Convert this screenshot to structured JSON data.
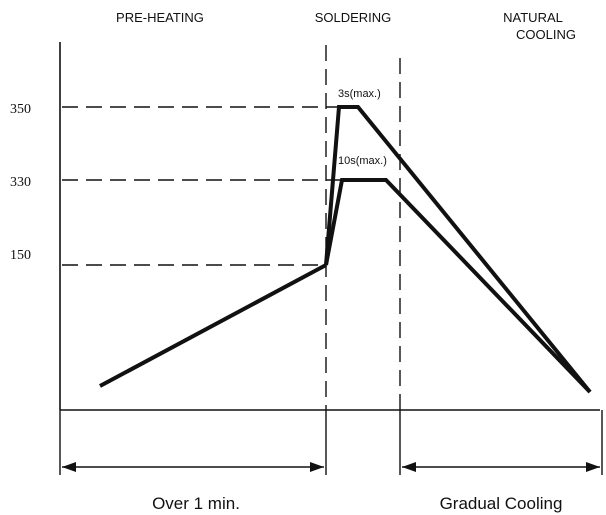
{
  "phases": {
    "preheating": "PRE-HEATING",
    "soldering": "SOLDERING",
    "cooling_line1": "NATURAL",
    "cooling_line2": "COOLING"
  },
  "temperature_ticks": [
    "350",
    "330",
    "150"
  ],
  "profile_labels": {
    "peak_350_time": "3s(max.)",
    "peak_330_time": "10s(max.)"
  },
  "durations": {
    "preheating": "Over 1 min.",
    "cooling": "Gradual Cooling"
  }
}
